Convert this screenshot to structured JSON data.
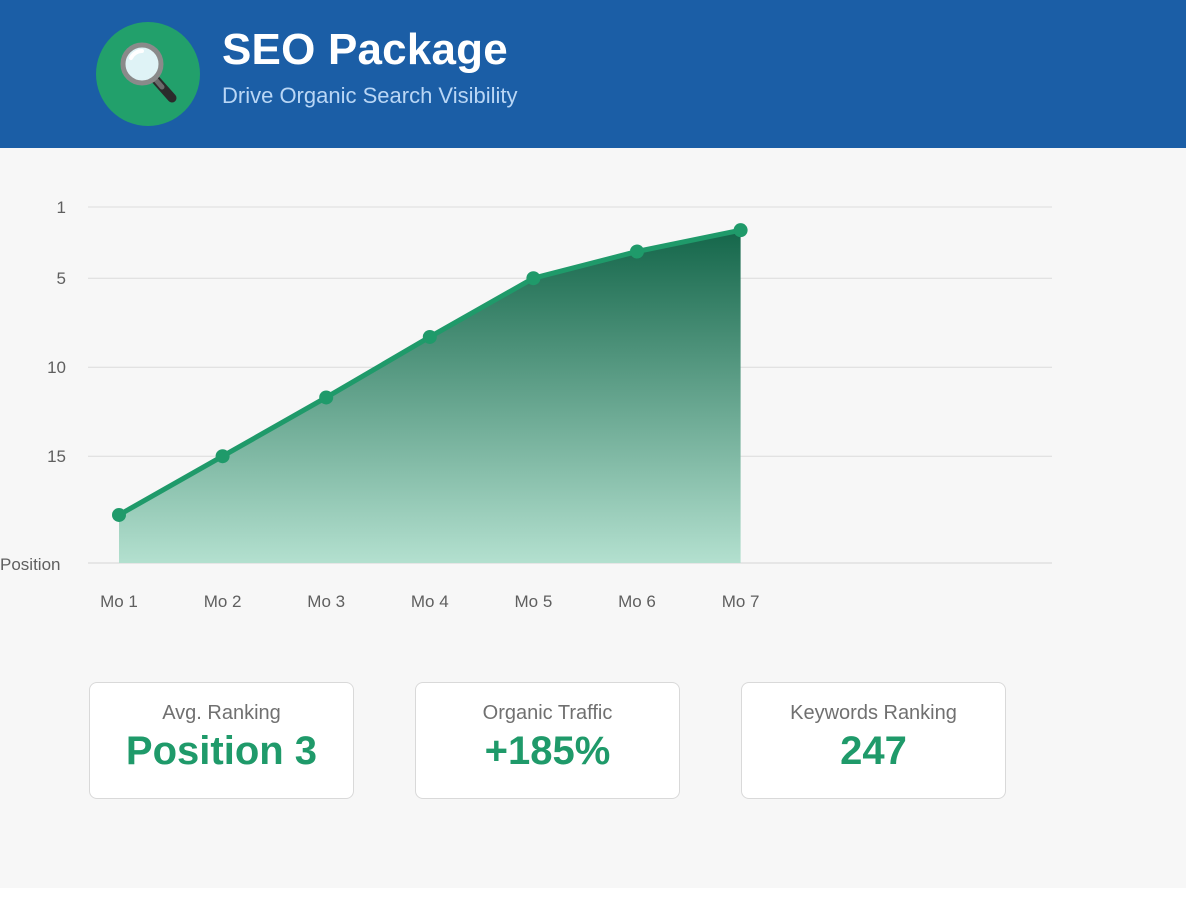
{
  "header": {
    "title": "SEO Package",
    "subtitle": "Drive Organic Search Visibility",
    "icon": "magnifying-glass-icon",
    "background_color": "#1b5ea6",
    "logo_color": "#22a06b"
  },
  "chart_data": {
    "type": "area",
    "title": "",
    "xlabel": "",
    "ylabel": "Position",
    "y_inverted": true,
    "ylim": [
      1,
      21
    ],
    "y_ticks": [
      1,
      5,
      10,
      15
    ],
    "grid": true,
    "categories": [
      "Mo 1",
      "Mo 2",
      "Mo 3",
      "Mo 4",
      "Mo 5",
      "Mo 6",
      "Mo 7"
    ],
    "values": [
      18.3,
      15,
      11.7,
      8.3,
      5,
      3.5,
      2.3
    ],
    "line_color": "#1f9a6a",
    "fill_color_top": "#14664a",
    "fill_color_bottom": "#b3e0cf"
  },
  "stats": [
    {
      "label": "Avg. Ranking",
      "value": "Position 3"
    },
    {
      "label": "Organic Traffic",
      "value": "+185%"
    },
    {
      "label": "Keywords Ranking",
      "value": "247"
    }
  ],
  "colors": {
    "accent": "#1f9a6a",
    "page_background": "#f7f7f7"
  }
}
